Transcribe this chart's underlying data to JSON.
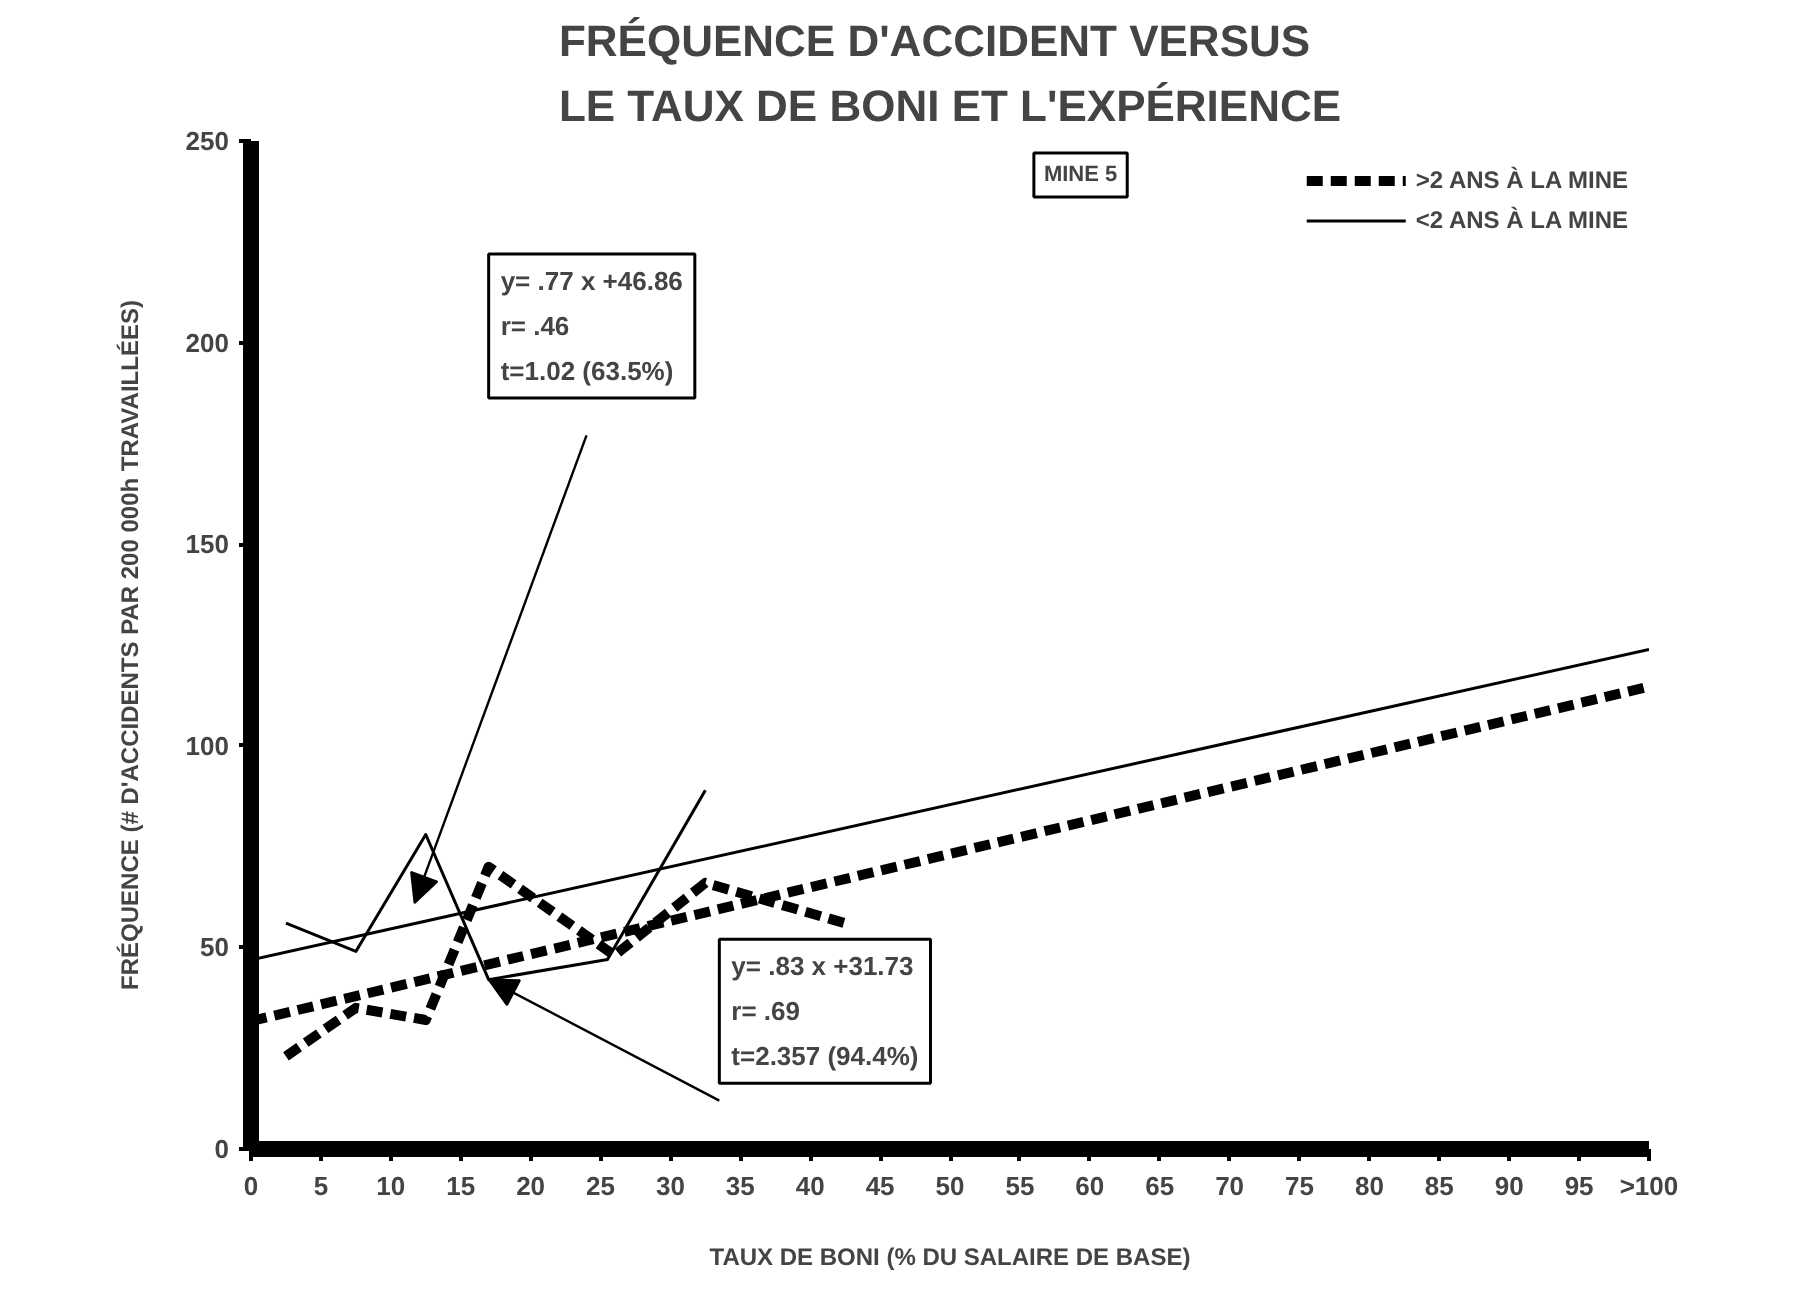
{
  "chart_data": {
    "type": "line",
    "title": "FRÉQUENCE D'ACCIDENT VERSUS\nLE TAUX DE BONI ET L'EXPÉRIENCE",
    "xlabel": "TAUX DE BONI (% DU SALAIRE DE BASE)",
    "ylabel": "FRÉQUENCE (# D'ACCIDENTS PAR 200 000h TRAVAILLÉES)",
    "x": [
      2.5,
      7.5,
      12.5,
      17,
      26,
      32.5,
      42.5
    ],
    "series": [
      {
        "name": ">2 ANS À LA MINE",
        "color": "#000000",
        "line_style": "dashed",
        "values": [
          23,
          35,
          32,
          70,
          48,
          66,
          56
        ]
      },
      {
        "name": "<2 ANS À LA MINE",
        "color": "#000000",
        "line_style": "solid",
        "x": [
          2.5,
          7.5,
          12.5,
          17,
          25.5,
          32.5
        ],
        "values": [
          56,
          49,
          78,
          42,
          47,
          89
        ]
      },
      {
        "color": "#000000",
        "line_style": "dashed",
        "x": [
          0,
          100
        ],
        "values": [
          31.7,
          114.7
        ]
      },
      {
        "color": "#000000",
        "line_style": "solid",
        "x": [
          0,
          100
        ],
        "values": [
          46.9,
          123.9
        ]
      }
    ],
    "xlim": [
      0,
      100
    ],
    "xticks": [
      0,
      5,
      10,
      15,
      20,
      25,
      30,
      35,
      40,
      45,
      50,
      55,
      60,
      65,
      70,
      75,
      80,
      85,
      90,
      95,
      {
        "value": 100,
        "label": ">100"
      }
    ],
    "ylim": [
      0,
      250
    ],
    "yticks": [
      0,
      50,
      100,
      150,
      200,
      250
    ],
    "grid": false,
    "legend": "top right",
    "marker": "none",
    "annotations": [
      "y= .77 x +46.86\nr= .46\nt=1.02 (63.5%)",
      {
        "text": "y= .83 x +31.73\nr= .69\nt=2.357 (94.4%)",
        "x": 17,
        "y": 42
      },
      "MINE 5"
    ]
  }
}
